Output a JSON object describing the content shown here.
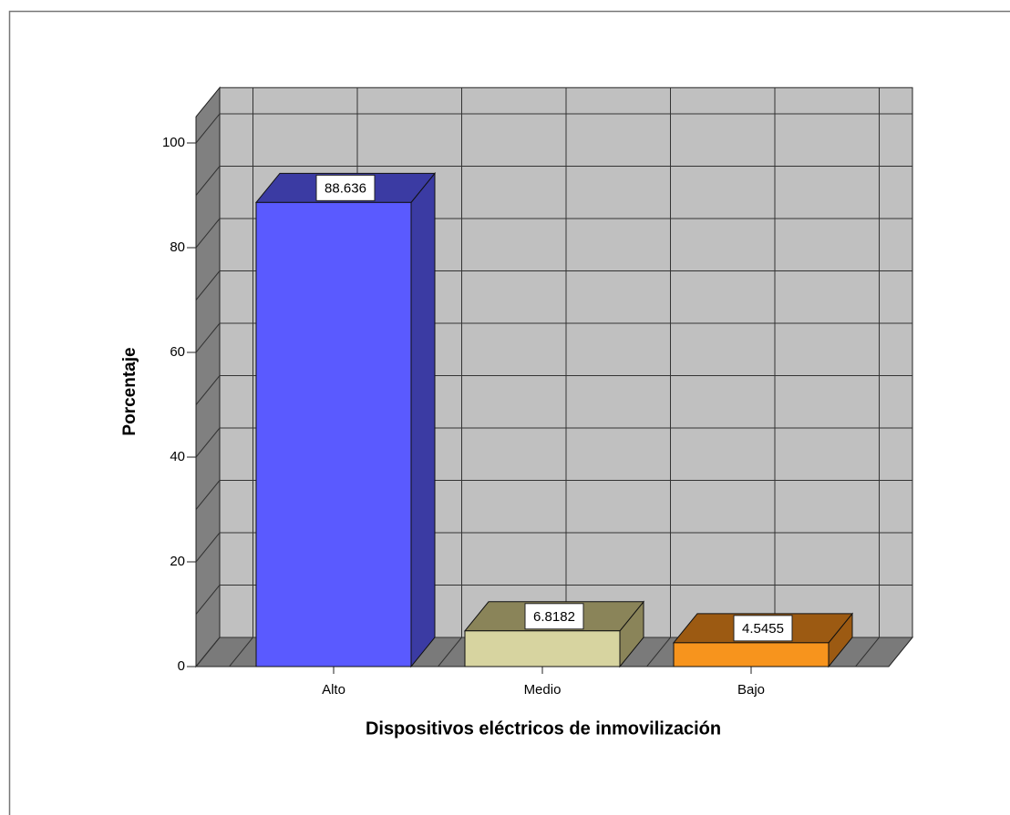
{
  "chart_data": {
    "type": "bar3d",
    "categories": [
      "Alto",
      "Medio",
      "Bajo"
    ],
    "values": [
      88.636,
      6.8182,
      4.5455
    ],
    "colors": [
      "#5a5aff",
      "#d7d4a0",
      "#f7941d"
    ],
    "top_colors": [
      "#3b3ba3",
      "#8a8459",
      "#9c5a12"
    ],
    "xlabel": "Dispositivos eléctricos de inmovilización",
    "ylabel": "Porcentaje",
    "ylim": [
      0,
      105
    ],
    "yticks": [
      0,
      20,
      40,
      60,
      80,
      100
    ],
    "ygrid": [
      0,
      10,
      20,
      30,
      40,
      50,
      60,
      70,
      80,
      90,
      100
    ],
    "grid": true
  }
}
